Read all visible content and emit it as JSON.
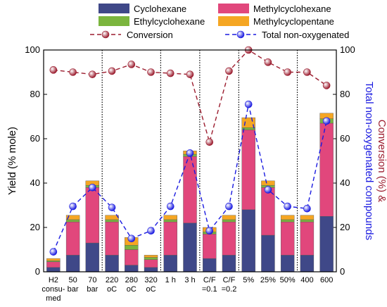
{
  "chart_data": {
    "type": "bar",
    "stacked": true,
    "ylabel": "Yield (% mole)",
    "y2label": [
      "Conversion (%) &",
      "Total non-oxygenated compounds"
    ],
    "y2label_colors": [
      "#9b1c2e",
      "#1a1ae0"
    ],
    "categories": [
      "H2\nconsu-\nmed",
      "50\nbar",
      "70\nbar",
      "220\noC",
      "280\noC",
      "320\noC",
      "1 h",
      "3 h",
      "C/F\n=0.1",
      "C/F\n=0.2",
      "5%",
      "25%",
      "50%",
      "400",
      "600"
    ],
    "series": [
      {
        "name": "Cyclohexane",
        "color": "#3f4888",
        "values": [
          2,
          7.5,
          13,
          7.5,
          3,
          2,
          7.5,
          22,
          6,
          7.5,
          28,
          16.5,
          7.5,
          7.5,
          25
        ]
      },
      {
        "name": "Methylcyclohexane",
        "color": "#e1477c",
        "values": [
          2.5,
          15,
          25,
          15,
          7,
          3.5,
          15,
          30,
          11,
          15,
          36,
          21.5,
          15,
          15,
          42
        ]
      },
      {
        "name": "Ethylcyclohexane",
        "color": "#7bb53e",
        "values": [
          0.5,
          1,
          1,
          1,
          2,
          1,
          1,
          1,
          1,
          1,
          1,
          1,
          1,
          1,
          2
        ]
      },
      {
        "name": "Methylcyclopentane",
        "color": "#f5a623",
        "values": [
          1,
          2,
          2,
          2,
          3.5,
          1,
          2,
          1.5,
          2,
          2,
          4.5,
          2,
          2,
          2,
          2.5
        ]
      },
      {
        "name": "Conversion",
        "color": "#9b1c2e",
        "type": "line",
        "axis": "y2",
        "values": [
          91,
          90,
          89,
          90.5,
          93.5,
          90,
          89.5,
          89,
          58.5,
          90.5,
          100,
          94.5,
          90,
          90,
          84
        ]
      },
      {
        "name": "Total non-oxygenated",
        "color": "#1a1ae0",
        "type": "line",
        "axis": "y2",
        "values": [
          9,
          29.5,
          38,
          29,
          15,
          18.5,
          29.5,
          53.5,
          18.5,
          29.5,
          75.5,
          37,
          29.5,
          28.5,
          68
        ]
      }
    ],
    "ylim": [
      0,
      100
    ],
    "yticks": [
      0,
      20,
      40,
      60,
      80,
      100
    ],
    "y2lim": [
      0,
      100
    ],
    "y2ticks": [
      0,
      20,
      40,
      60,
      80,
      100
    ]
  }
}
